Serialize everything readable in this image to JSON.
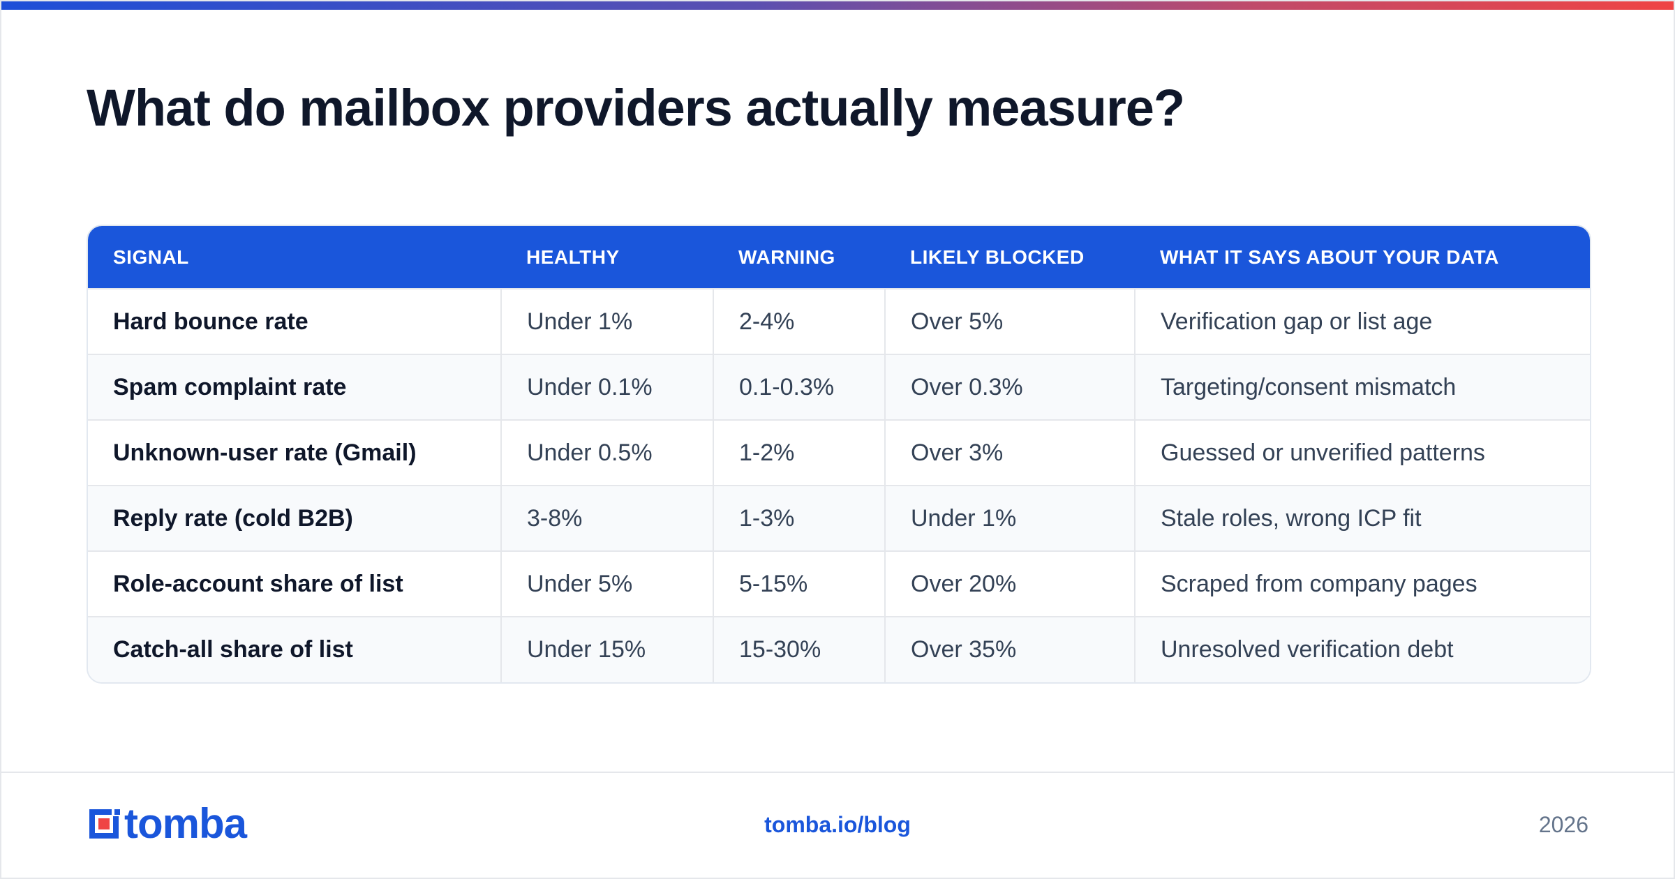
{
  "title": "What do mailbox providers actually measure?",
  "brand": {
    "name": "tomba",
    "accent": "#1a56db",
    "mark_accent": "#ef4444"
  },
  "table": {
    "headers": [
      "SIGNAL",
      "HEALTHY",
      "WARNING",
      "LIKELY BLOCKED",
      "WHAT IT SAYS ABOUT YOUR DATA"
    ],
    "rows": [
      [
        "Hard bounce rate",
        "Under 1%",
        "2-4%",
        "Over 5%",
        "Verification gap or list age"
      ],
      [
        "Spam complaint rate",
        "Under 0.1%",
        "0.1-0.3%",
        "Over 0.3%",
        "Targeting/consent mismatch"
      ],
      [
        "Unknown-user rate (Gmail)",
        "Under 0.5%",
        "1-2%",
        "Over 3%",
        "Guessed or unverified patterns"
      ],
      [
        "Reply rate (cold B2B)",
        "3-8%",
        "1-3%",
        "Under 1%",
        "Stale roles, wrong ICP fit"
      ],
      [
        "Role-account share of list",
        "Under 5%",
        "5-15%",
        "Over 20%",
        "Scraped from company pages"
      ],
      [
        "Catch-all share of list",
        "Under 15%",
        "15-30%",
        "Over 35%",
        "Unresolved verification debt"
      ]
    ]
  },
  "footer": {
    "link": "tomba.io/blog",
    "year": "2026"
  }
}
